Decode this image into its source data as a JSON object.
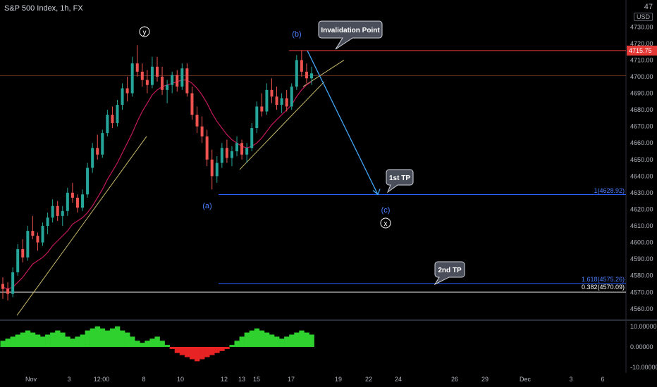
{
  "header": {
    "symbol": "S&P 500 Index, 1h, FX"
  },
  "corner": {
    "number": "47",
    "currency": "USD"
  },
  "chart_data": {
    "type": "candlestick",
    "price_axis": {
      "ticks": [
        4730,
        4720,
        4710,
        4700,
        4690,
        4680,
        4670,
        4660,
        4650,
        4640,
        4630,
        4620,
        4610,
        4600,
        4590,
        4580,
        4570,
        4560
      ],
      "tick_labels": [
        "4730.00",
        "4720.00",
        "4710.00",
        "4700.00",
        "4690.00",
        "4680.00",
        "4670.00",
        "4660.00",
        "4650.00",
        "4640.00",
        "4630.00",
        "4620.00",
        "4610.00",
        "4600.00",
        "4590.00",
        "4580.00",
        "4570.00",
        "4560.00"
      ],
      "range": [
        4554,
        4742
      ],
      "current_price": "4715.75"
    },
    "time_axis": {
      "labels": [
        "Nov",
        "3",
        "12:00",
        "8",
        "10",
        "12",
        "13",
        "15",
        "17",
        "19",
        "22",
        "24",
        "26",
        "29",
        "Dec",
        "3",
        "6"
      ]
    },
    "candles_ohlc": [
      [
        4575,
        4579,
        4566,
        4572
      ],
      [
        4572,
        4576,
        4565,
        4569
      ],
      [
        4569,
        4585,
        4567,
        4582
      ],
      [
        4582,
        4599,
        4580,
        4596
      ],
      [
        4596,
        4602,
        4588,
        4591
      ],
      [
        4591,
        4610,
        4589,
        4607
      ],
      [
        4607,
        4616,
        4602,
        4604
      ],
      [
        4604,
        4606,
        4595,
        4600
      ],
      [
        4600,
        4612,
        4598,
        4610
      ],
      [
        4610,
        4618,
        4605,
        4615
      ],
      [
        4615,
        4626,
        4612,
        4622
      ],
      [
        4622,
        4625,
        4613,
        4616
      ],
      [
        4616,
        4622,
        4610,
        4619
      ],
      [
        4619,
        4633,
        4616,
        4630
      ],
      [
        4630,
        4636,
        4624,
        4627
      ],
      [
        4627,
        4629,
        4618,
        4621
      ],
      [
        4621,
        4632,
        4619,
        4629
      ],
      [
        4629,
        4648,
        4627,
        4645
      ],
      [
        4645,
        4660,
        4642,
        4657
      ],
      [
        4657,
        4665,
        4650,
        4653
      ],
      [
        4653,
        4668,
        4651,
        4666
      ],
      [
        4666,
        4680,
        4664,
        4677
      ],
      [
        4677,
        4682,
        4669,
        4672
      ],
      [
        4672,
        4686,
        4670,
        4683
      ],
      [
        4683,
        4696,
        4680,
        4693
      ],
      [
        4693,
        4700,
        4685,
        4690
      ],
      [
        4690,
        4712,
        4688,
        4708
      ],
      [
        4708,
        4719,
        4700,
        4703
      ],
      [
        4703,
        4708,
        4694,
        4698
      ],
      [
        4698,
        4704,
        4690,
        4695
      ],
      [
        4695,
        4712,
        4693,
        4706
      ],
      [
        4706,
        4712,
        4697,
        4700
      ],
      [
        4700,
        4706,
        4689,
        4692
      ],
      [
        4692,
        4698,
        4684,
        4695
      ],
      [
        4695,
        4703,
        4690,
        4701
      ],
      [
        4701,
        4704,
        4691,
        4694
      ],
      [
        4694,
        4708,
        4692,
        4705
      ],
      [
        4705,
        4708,
        4688,
        4690
      ],
      [
        4690,
        4694,
        4674,
        4677
      ],
      [
        4677,
        4682,
        4666,
        4670
      ],
      [
        4670,
        4676,
        4660,
        4664
      ],
      [
        4664,
        4668,
        4646,
        4650
      ],
      [
        4650,
        4656,
        4632,
        4640
      ],
      [
        4640,
        4652,
        4636,
        4648
      ],
      [
        4648,
        4660,
        4645,
        4657
      ],
      [
        4657,
        4662,
        4648,
        4651
      ],
      [
        4651,
        4658,
        4646,
        4655
      ],
      [
        4655,
        4664,
        4652,
        4660
      ],
      [
        4660,
        4662,
        4650,
        4653
      ],
      [
        4653,
        4660,
        4648,
        4657
      ],
      [
        4657,
        4672,
        4655,
        4669
      ],
      [
        4669,
        4685,
        4666,
        4682
      ],
      [
        4682,
        4690,
        4676,
        4679
      ],
      [
        4679,
        4696,
        4677,
        4692
      ],
      [
        4692,
        4699,
        4684,
        4688
      ],
      [
        4688,
        4694,
        4680,
        4683
      ],
      [
        4683,
        4690,
        4678,
        4687
      ],
      [
        4687,
        4692,
        4679,
        4682
      ],
      [
        4682,
        4696,
        4680,
        4694
      ],
      [
        4694,
        4713,
        4692,
        4710
      ],
      [
        4710,
        4716,
        4700,
        4703
      ],
      [
        4703,
        4708,
        4696,
        4699
      ],
      [
        4699,
        4706,
        4695,
        4702
      ]
    ],
    "moving_average": {
      "color": "#c2185b",
      "values": [
        4573,
        4572,
        4573,
        4576,
        4579,
        4583,
        4587,
        4589,
        4591,
        4594,
        4598,
        4601,
        4604,
        4607,
        4611,
        4613,
        4615,
        4618,
        4622,
        4627,
        4632,
        4638,
        4643,
        4648,
        4654,
        4660,
        4666,
        4673,
        4679,
        4684,
        4689,
        4692,
        4694,
        4695,
        4696,
        4697,
        4698,
        4698,
        4696,
        4693,
        4689,
        4684,
        4678,
        4673,
        4669,
        4665,
        4662,
        4660,
        4658,
        4657,
        4658,
        4660,
        4663,
        4667,
        4671,
        4674,
        4677,
        4680,
        4683,
        4688,
        4692,
        4695,
        4697
      ]
    },
    "oscillator": {
      "ticks": [
        "10.00000",
        "0.00000",
        "-10.00000"
      ],
      "values": [
        3,
        4,
        5,
        6,
        7,
        8,
        7,
        6,
        5,
        6,
        7,
        8,
        7,
        5,
        4,
        5,
        6,
        8,
        9,
        10,
        9,
        8,
        9,
        10,
        8,
        7,
        5,
        3,
        2,
        3,
        4,
        5,
        3,
        1,
        -1,
        -3,
        -4,
        -5,
        -6,
        -7,
        -6,
        -5,
        -4,
        -3,
        -2,
        -1,
        1,
        3,
        5,
        7,
        8,
        9,
        8,
        7,
        6,
        5,
        4,
        5,
        6,
        7,
        8,
        7,
        6
      ]
    },
    "annotations": {
      "wave_labels": [
        "y",
        "(b)",
        "(a)",
        "(c)",
        "x"
      ],
      "callouts": [
        "Invalidation Point",
        "1st TP",
        "2nd TP"
      ],
      "fib_1": "1(4628.92)",
      "fib_1618": "1.618(4575.26)",
      "fib_0382": "0.382(4570.09)"
    },
    "levels": {
      "invalidation": 4715.75,
      "tp1": 4628.92,
      "tp2": 4575.26,
      "fib0382": 4570.09
    },
    "colors": {
      "up": "#26a69a",
      "down": "#ef5350",
      "invalidation": "#e53935",
      "tp_line": "#2962ff",
      "projection": "#42a5f5",
      "trendline": "#c8b96a",
      "osc_up": "#2fd12f",
      "osc_down": "#e82323",
      "background": "#000000"
    }
  }
}
